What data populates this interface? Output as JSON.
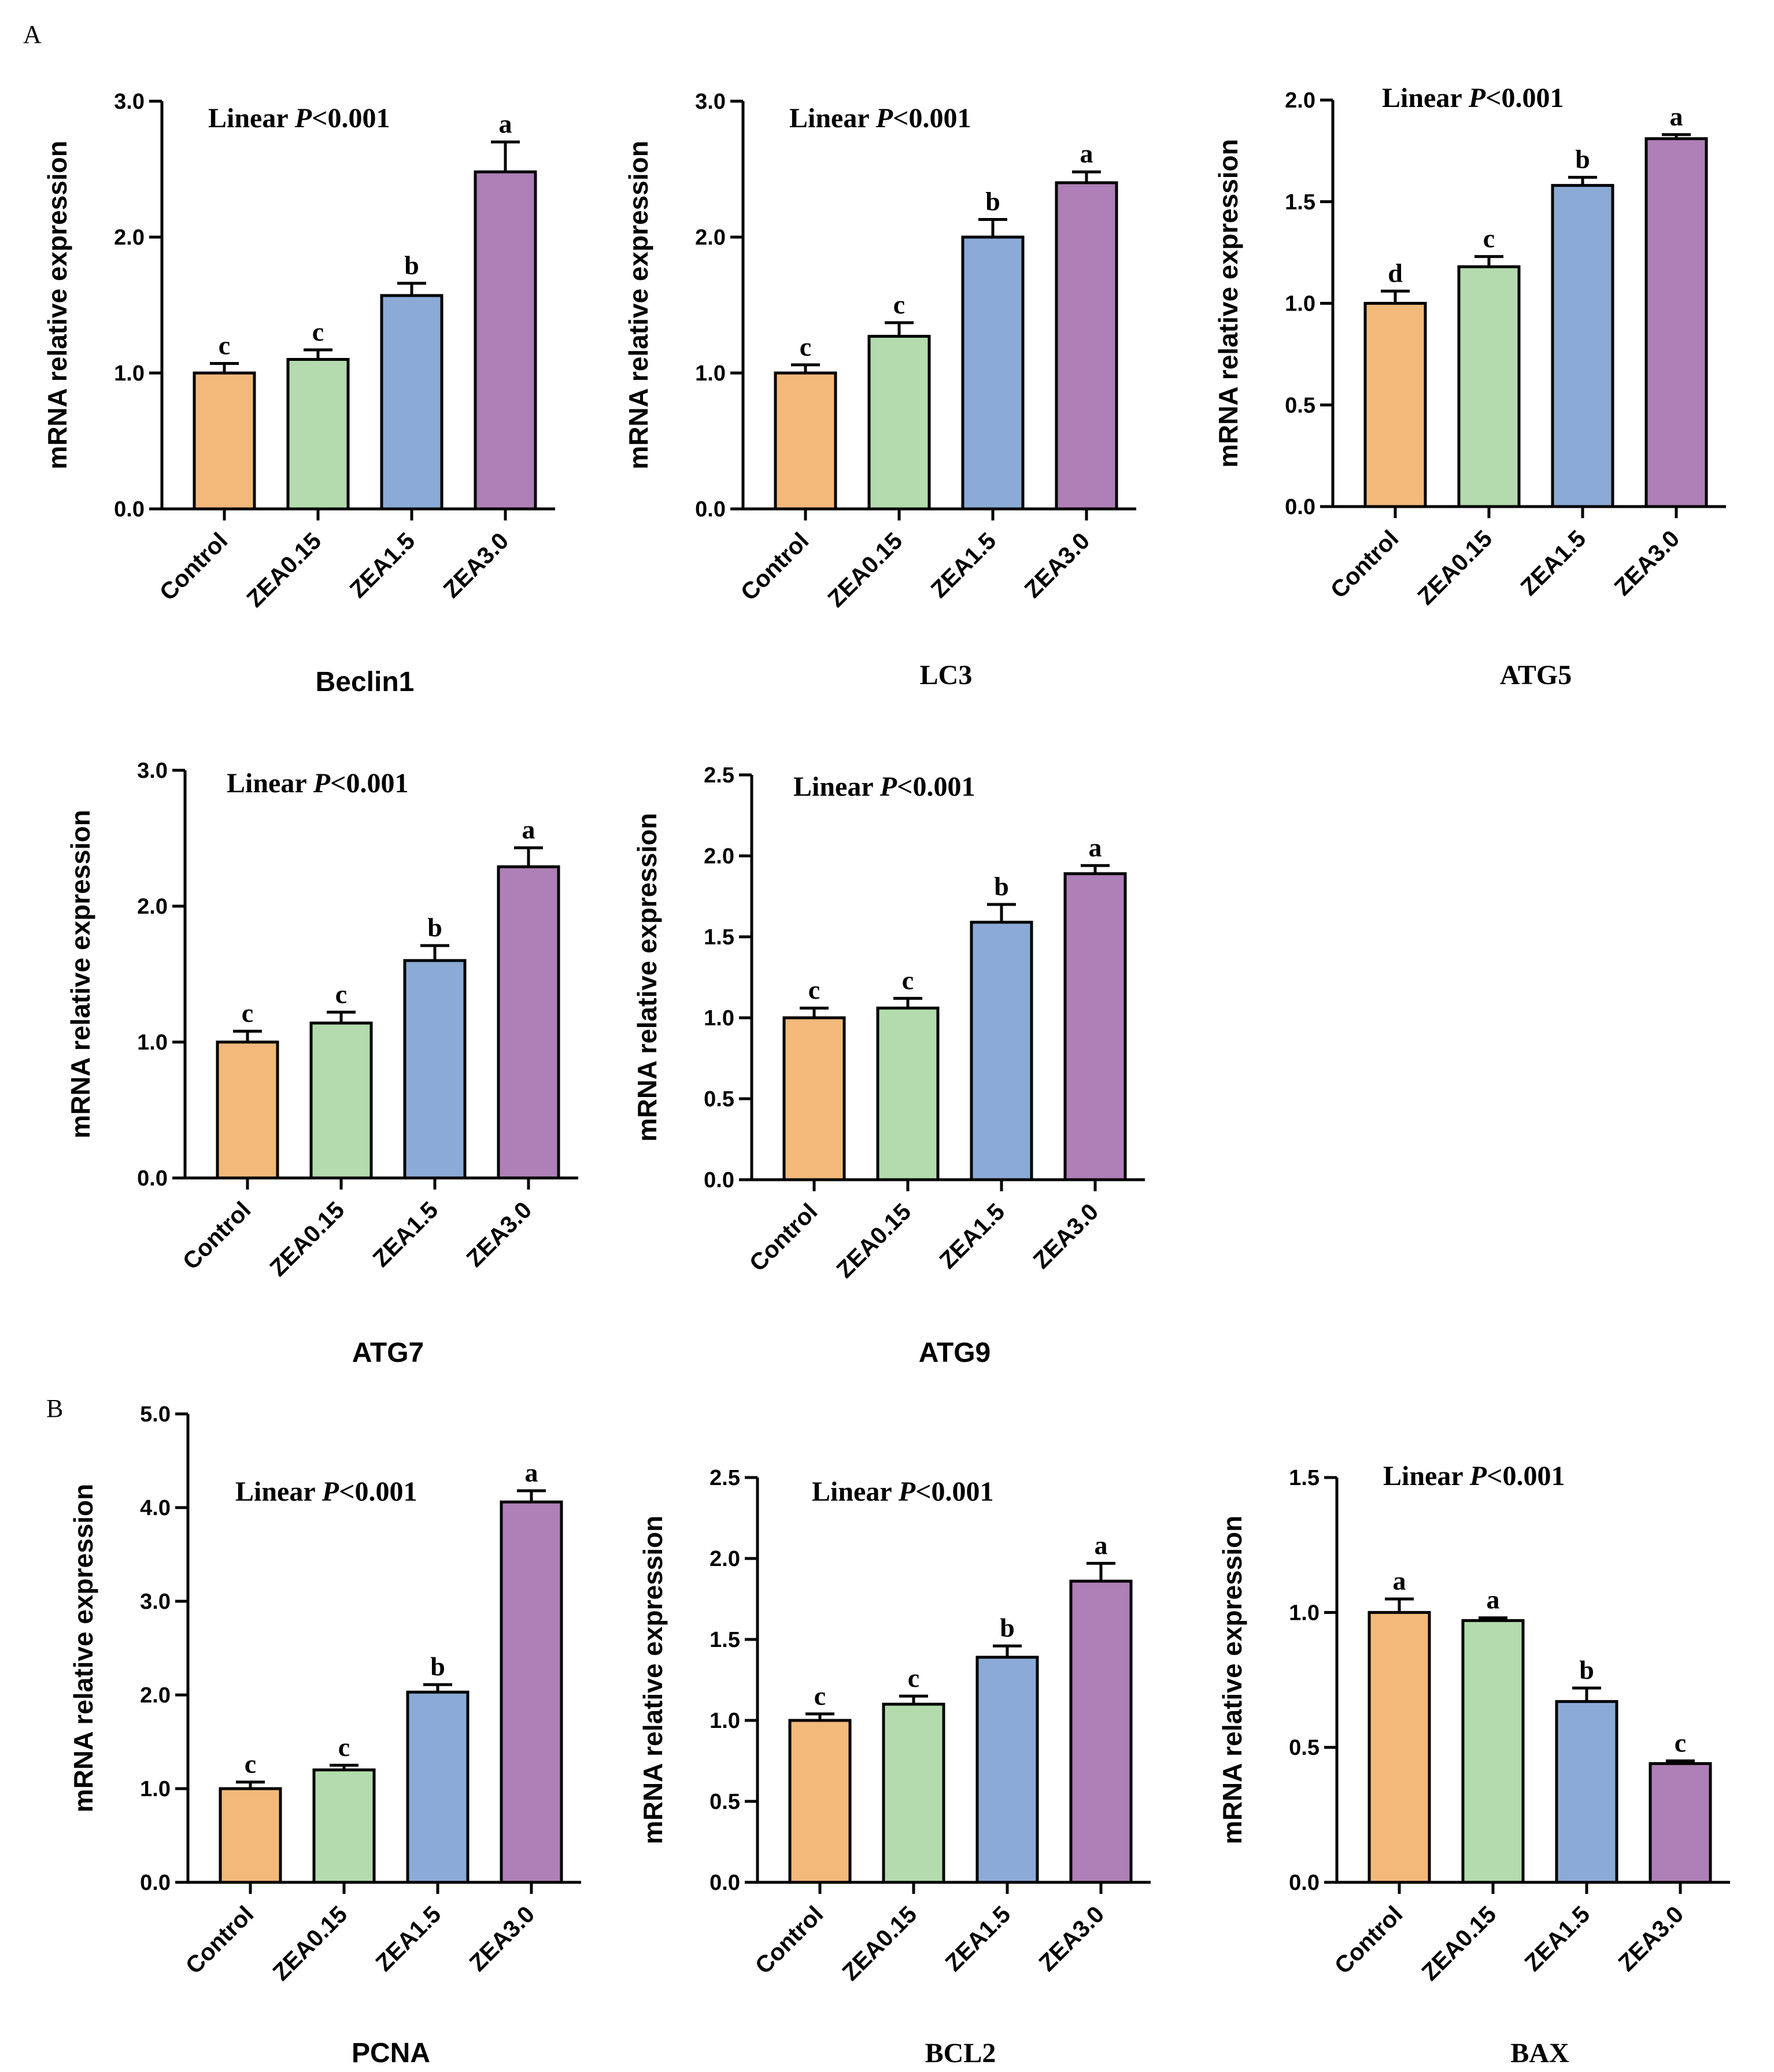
{
  "panel_labels": [
    "A",
    "B"
  ],
  "colors": {
    "Control": "#F3B97B",
    "ZEA0.15": "#B3DBAD",
    "ZEA1.5": "#8BABD6",
    "ZEA3.0": "#AF7FB7",
    "axis": "#000000"
  },
  "chart_data": [
    {
      "id": "beclin1",
      "panel": "A",
      "type": "bar",
      "title": "Beclin1",
      "title_font": "sans",
      "ylabel": "mRNA relative expression",
      "annotation": {
        "prefix": "Linear ",
        "p": "P",
        "suffix": "<0.001"
      },
      "categories": [
        "Control",
        "ZEA0.15",
        "ZEA1.5",
        "ZEA3.0"
      ],
      "values": [
        1.0,
        1.1,
        1.57,
        2.48
      ],
      "errors": [
        0.07,
        0.07,
        0.09,
        0.22
      ],
      "significance": [
        "c",
        "c",
        "b",
        "a"
      ],
      "ylim": [
        0,
        3.0
      ],
      "yticks": [
        "0.0",
        "1.0",
        "2.0",
        "3.0"
      ]
    },
    {
      "id": "lc3",
      "panel": "A",
      "type": "bar",
      "title": "LC3",
      "title_font": "serif",
      "ylabel": "mRNA relative expression",
      "annotation": {
        "prefix": "Linear ",
        "p": "P",
        "suffix": "<0.001"
      },
      "categories": [
        "Control",
        "ZEA0.15",
        "ZEA1.5",
        "ZEA3.0"
      ],
      "values": [
        1.0,
        1.27,
        2.0,
        2.4
      ],
      "errors": [
        0.06,
        0.1,
        0.13,
        0.08
      ],
      "significance": [
        "c",
        "c",
        "b",
        "a"
      ],
      "ylim": [
        0,
        3.0
      ],
      "yticks": [
        "0.0",
        "1.0",
        "2.0",
        "3.0"
      ]
    },
    {
      "id": "atg5",
      "panel": "A",
      "type": "bar",
      "title": "ATG5",
      "title_font": "serif",
      "ylabel": "mRNA relative expression",
      "annotation": {
        "prefix": "Linear ",
        "p": "P",
        "suffix": "<0.001"
      },
      "categories": [
        "Control",
        "ZEA0.15",
        "ZEA1.5",
        "ZEA3.0"
      ],
      "values": [
        1.0,
        1.18,
        1.58,
        1.81
      ],
      "errors": [
        0.06,
        0.05,
        0.04,
        0.02
      ],
      "significance": [
        "d",
        "c",
        "b",
        "a"
      ],
      "ylim": [
        0,
        2.0
      ],
      "yticks": [
        "0.0",
        "0.5",
        "1.0",
        "1.5",
        "2.0"
      ]
    },
    {
      "id": "atg7",
      "panel": "A",
      "type": "bar",
      "title": "ATG7",
      "title_font": "sans",
      "ylabel": "mRNA relative expression",
      "annotation": {
        "prefix": "Linear ",
        "p": "P",
        "suffix": "<0.001"
      },
      "categories": [
        "Control",
        "ZEA0.15",
        "ZEA1.5",
        "ZEA3.0"
      ],
      "values": [
        1.0,
        1.14,
        1.6,
        2.29
      ],
      "errors": [
        0.08,
        0.08,
        0.11,
        0.14
      ],
      "significance": [
        "c",
        "c",
        "b",
        "a"
      ],
      "ylim": [
        0,
        3.0
      ],
      "yticks": [
        "0.0",
        "1.0",
        "2.0",
        "3.0"
      ]
    },
    {
      "id": "atg9",
      "panel": "A",
      "type": "bar",
      "title": "ATG9",
      "title_font": "sans",
      "ylabel": "mRNA relative expression",
      "annotation": {
        "prefix": "Linear ",
        "p": "P",
        "suffix": "<0.001"
      },
      "categories": [
        "Control",
        "ZEA0.15",
        "ZEA1.5",
        "ZEA3.0"
      ],
      "values": [
        1.0,
        1.06,
        1.59,
        1.89
      ],
      "errors": [
        0.06,
        0.06,
        0.11,
        0.05
      ],
      "significance": [
        "c",
        "c",
        "b",
        "a"
      ],
      "ylim": [
        0,
        2.5
      ],
      "yticks": [
        "0.0",
        "0.5",
        "1.0",
        "1.5",
        "2.0",
        "2.5"
      ]
    },
    {
      "id": "pcna",
      "panel": "B",
      "type": "bar",
      "title": "PCNA",
      "title_font": "sans",
      "ylabel": "mRNA relative expression",
      "annotation": {
        "prefix": "Linear ",
        "p": "P",
        "suffix": "<0.001"
      },
      "categories": [
        "Control",
        "ZEA0.15",
        "ZEA1.5",
        "ZEA3.0"
      ],
      "values": [
        1.0,
        1.2,
        2.03,
        4.06
      ],
      "errors": [
        0.07,
        0.05,
        0.08,
        0.12
      ],
      "significance": [
        "c",
        "c",
        "b",
        "a"
      ],
      "ylim": [
        0,
        5.0
      ],
      "yticks": [
        "0.0",
        "1.0",
        "2.0",
        "3.0",
        "4.0",
        "5.0"
      ]
    },
    {
      "id": "bcl2",
      "panel": "B",
      "type": "bar",
      "title": "BCL2",
      "title_font": "serif",
      "ylabel": "mRNA relative expression",
      "annotation": {
        "prefix": "Linear ",
        "p": "P",
        "suffix": "<0.001"
      },
      "categories": [
        "Control",
        "ZEA0.15",
        "ZEA1.5",
        "ZEA3.0"
      ],
      "values": [
        1.0,
        1.1,
        1.39,
        1.86
      ],
      "errors": [
        0.04,
        0.05,
        0.07,
        0.11
      ],
      "significance": [
        "c",
        "c",
        "b",
        "a"
      ],
      "ylim": [
        0,
        2.5
      ],
      "yticks": [
        "0.0",
        "0.5",
        "1.0",
        "1.5",
        "2.0",
        "2.5"
      ]
    },
    {
      "id": "bax",
      "panel": "B",
      "type": "bar",
      "title": "BAX",
      "title_font": "serif",
      "ylabel": "mRNA relative expression",
      "annotation": {
        "prefix": "Linear ",
        "p": "P",
        "suffix": "<0.001"
      },
      "categories": [
        "Control",
        "ZEA0.15",
        "ZEA1.5",
        "ZEA3.0"
      ],
      "values": [
        1.0,
        0.97,
        0.67,
        0.44
      ],
      "errors": [
        0.05,
        0.01,
        0.05,
        0.01
      ],
      "significance": [
        "a",
        "a",
        "b",
        "c"
      ],
      "ylim": [
        0,
        1.5
      ],
      "yticks": [
        "0.0",
        "0.5",
        "1.0",
        "1.5"
      ]
    }
  ]
}
